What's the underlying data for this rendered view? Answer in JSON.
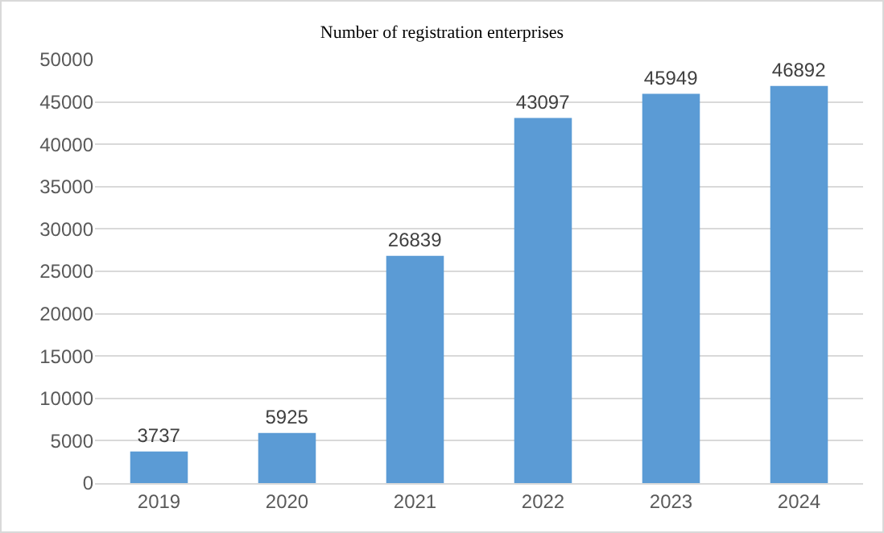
{
  "chart_data": {
    "type": "bar",
    "title": "Number of registration enterprises",
    "categories": [
      "2019",
      "2020",
      "2021",
      "2022",
      "2023",
      "2024"
    ],
    "values": [
      3737,
      5925,
      26839,
      43097,
      45949,
      46892
    ],
    "color": "#5b9bd5",
    "ylim": [
      0,
      50000
    ],
    "yticks": [
      0,
      5000,
      10000,
      15000,
      20000,
      25000,
      30000,
      35000,
      40000,
      45000,
      50000
    ],
    "grid": "y",
    "data_labels": true
  }
}
